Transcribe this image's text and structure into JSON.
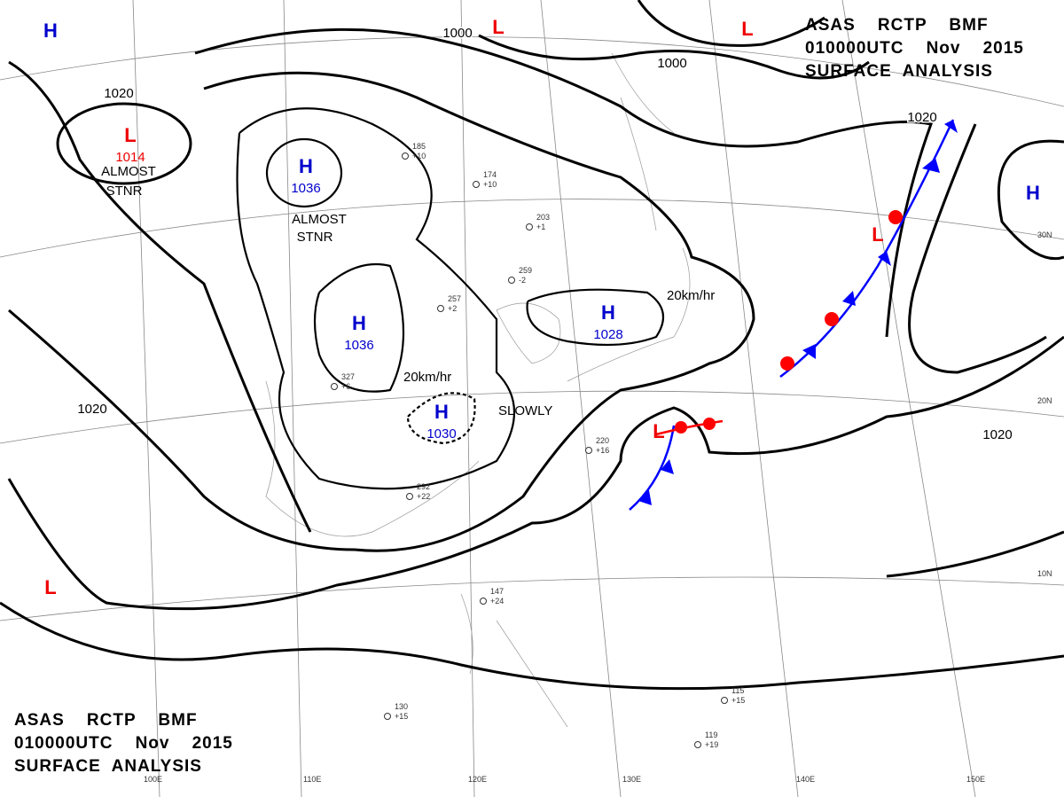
{
  "header": {
    "lines": [
      "ASAS    RCTP    BMF",
      "010000UTC    Nov    2015",
      "SURFACE  ANALYSIS"
    ]
  },
  "footer": {
    "lines": [
      "ASAS    RCTP    BMF",
      "010000UTC    Nov    2015",
      "SURFACE  ANALYSIS"
    ]
  },
  "systems": [
    {
      "mark": "H"
    },
    {
      "mark": "L",
      "pressure": "1014"
    },
    {
      "mark": "H",
      "pressure": "1036"
    },
    {
      "mark": "H",
      "pressure": "1036"
    },
    {
      "mark": "H",
      "pressure": "1030"
    },
    {
      "mark": "H",
      "pressure": "1028"
    },
    {
      "mark": "L"
    },
    {
      "mark": "L"
    },
    {
      "mark": "H"
    },
    {
      "mark": "L"
    },
    {
      "mark": "L"
    },
    {
      "mark": "L"
    }
  ],
  "isobar_labels": [
    "1000",
    "1000",
    "1020",
    "1020",
    "1020",
    "1020"
  ],
  "notes": [
    "ALMOST",
    "STNR",
    "ALMOST",
    "STNR"
  ],
  "motion_labels": [
    "20km/hr",
    "20km/hr",
    "SLOWLY"
  ],
  "lon_labels": [
    "100E",
    "110E",
    "120E",
    "130E",
    "140E",
    "150E"
  ],
  "lat_labels": [
    "30N",
    "20N",
    "10N"
  ],
  "stations": [
    {
      "pressure": "185",
      "temp": "+10"
    },
    {
      "pressure": "174",
      "temp": "+10"
    },
    {
      "pressure": "203",
      "temp": "+1"
    },
    {
      "pressure": "259",
      "temp": "-2"
    },
    {
      "pressure": "257",
      "temp": "+2"
    },
    {
      "pressure": "327",
      "temp": "+6"
    },
    {
      "pressure": "292",
      "temp": "+22"
    },
    {
      "pressure": "220",
      "temp": "+16"
    },
    {
      "pressure": "147",
      "temp": "+24"
    },
    {
      "pressure": "130",
      "temp": "+15"
    },
    {
      "pressure": "115",
      "temp": "+15"
    },
    {
      "pressure": "119",
      "temp": "+19"
    }
  ]
}
